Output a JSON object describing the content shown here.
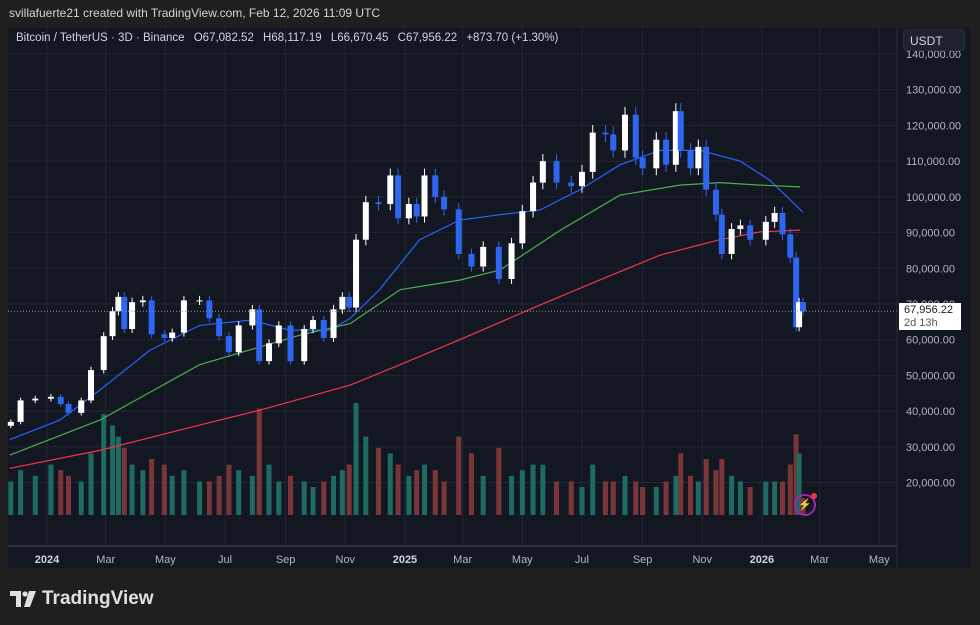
{
  "credit": "svillafuerte21 created with TradingView.com, Feb 12, 2026 11:09 UTC",
  "legend": {
    "symbol": "Bitcoin / TetherUS · 3D · Binance",
    "open": "O67,082.52",
    "high": "H68,117.19",
    "low": "L66,670.45",
    "close": "C67,956.22",
    "change": "+873.70 (+1.30%)"
  },
  "currency_button": "USDT",
  "last_price": {
    "value": "67,956.22",
    "countdown": "2d 13h"
  },
  "logo_text": "TradingView",
  "colors": {
    "up_candle": "#ffffff",
    "down_candle": "#2f66f0",
    "ma_fast": "#2962ff",
    "ma_mid": "#4caf50",
    "ma_slow": "#f23645",
    "vol_up": "#1d6b61",
    "vol_down": "#7a3538",
    "background": "#131722"
  },
  "chart_data": {
    "type": "candlestick",
    "title": "Bitcoin / TetherUS · 3D · Binance",
    "ylim": [
      15000,
      142000
    ],
    "xlim": [
      "2023-11-20",
      "2026-05-20"
    ],
    "grid": true,
    "price_ticks": [
      "140,000.00",
      "130,000.00",
      "120,000.00",
      "110,000.00",
      "100,000.00",
      "90,000.00",
      "80,000.00",
      "70,000.00",
      "60,000.00",
      "50,000.00",
      "40,000.00",
      "30,000.00",
      "20,000.00"
    ],
    "price_tick_values": [
      140000,
      130000,
      120000,
      110000,
      100000,
      90000,
      80000,
      70000,
      60000,
      50000,
      40000,
      30000,
      20000
    ],
    "time_ticks": [
      {
        "label": "2024",
        "date": "2024-01-01",
        "year": true
      },
      {
        "label": "Mar",
        "date": "2024-03-01"
      },
      {
        "label": "May",
        "date": "2024-05-01"
      },
      {
        "label": "Jul",
        "date": "2024-07-01"
      },
      {
        "label": "Sep",
        "date": "2024-09-01"
      },
      {
        "label": "Nov",
        "date": "2024-11-01"
      },
      {
        "label": "2025",
        "date": "2025-01-01",
        "year": true
      },
      {
        "label": "Mar",
        "date": "2025-03-01"
      },
      {
        "label": "May",
        "date": "2025-05-01"
      },
      {
        "label": "Jul",
        "date": "2025-07-01"
      },
      {
        "label": "Sep",
        "date": "2025-09-01"
      },
      {
        "label": "Nov",
        "date": "2025-11-01"
      },
      {
        "label": "2026",
        "date": "2026-01-01",
        "year": true
      },
      {
        "label": "Mar",
        "date": "2026-03-01"
      },
      {
        "label": "May",
        "date": "2026-05-01"
      }
    ],
    "candles_close_volume": [
      [
        "2023-11-25",
        37000,
        0.3
      ],
      [
        "2023-12-05",
        43000,
        0.4
      ],
      [
        "2023-12-20",
        43500,
        0.35
      ],
      [
        "2024-01-05",
        44000,
        0.45
      ],
      [
        "2024-01-15",
        42000,
        0.4
      ],
      [
        "2024-01-23",
        39500,
        0.35
      ],
      [
        "2024-02-05",
        43000,
        0.3
      ],
      [
        "2024-02-15",
        51500,
        0.55
      ],
      [
        "2024-02-28",
        61000,
        0.9
      ],
      [
        "2024-03-08",
        68000,
        0.8
      ],
      [
        "2024-03-14",
        72000,
        0.7
      ],
      [
        "2024-03-20",
        63000,
        0.6
      ],
      [
        "2024-03-28",
        70500,
        0.45
      ],
      [
        "2024-04-08",
        71000,
        0.4
      ],
      [
        "2024-04-17",
        61500,
        0.5
      ],
      [
        "2024-04-30",
        60500,
        0.45
      ],
      [
        "2024-05-08",
        62000,
        0.35
      ],
      [
        "2024-05-20",
        71000,
        0.4
      ],
      [
        "2024-06-05",
        71000,
        0.3
      ],
      [
        "2024-06-15",
        66000,
        0.3
      ],
      [
        "2024-06-25",
        61000,
        0.35
      ],
      [
        "2024-07-05",
        56500,
        0.45
      ],
      [
        "2024-07-15",
        64000,
        0.4
      ],
      [
        "2024-07-29",
        68500,
        0.35
      ],
      [
        "2024-08-05",
        54000,
        0.95
      ],
      [
        "2024-08-15",
        59000,
        0.45
      ],
      [
        "2024-08-25",
        64000,
        0.3
      ],
      [
        "2024-09-06",
        54000,
        0.35
      ],
      [
        "2024-09-20",
        63000,
        0.3
      ],
      [
        "2024-09-29",
        65500,
        0.25
      ],
      [
        "2024-10-10",
        60500,
        0.3
      ],
      [
        "2024-10-20",
        68500,
        0.35
      ],
      [
        "2024-10-29",
        72000,
        0.4
      ],
      [
        "2024-11-05",
        69000,
        0.45
      ],
      [
        "2024-11-12",
        88000,
        1.0
      ],
      [
        "2024-11-22",
        98500,
        0.7
      ],
      [
        "2024-12-05",
        98000,
        0.6
      ],
      [
        "2024-12-17",
        106000,
        0.55
      ],
      [
        "2024-12-25",
        94000,
        0.45
      ],
      [
        "2025-01-05",
        98000,
        0.35
      ],
      [
        "2025-01-13",
        94500,
        0.4
      ],
      [
        "2025-01-21",
        106000,
        0.45
      ],
      [
        "2025-02-01",
        100000,
        0.4
      ],
      [
        "2025-02-10",
        96500,
        0.3
      ],
      [
        "2025-02-25",
        84000,
        0.7
      ],
      [
        "2025-03-10",
        80500,
        0.55
      ],
      [
        "2025-03-22",
        86000,
        0.35
      ],
      [
        "2025-04-07",
        77000,
        0.6
      ],
      [
        "2025-04-20",
        87000,
        0.35
      ],
      [
        "2025-05-01",
        96000,
        0.4
      ],
      [
        "2025-05-12",
        104000,
        0.45
      ],
      [
        "2025-05-22",
        110000,
        0.45
      ],
      [
        "2025-06-05",
        104000,
        0.3
      ],
      [
        "2025-06-20",
        103000,
        0.3
      ],
      [
        "2025-07-01",
        107000,
        0.25
      ],
      [
        "2025-07-12",
        118000,
        0.45
      ],
      [
        "2025-07-25",
        117500,
        0.3
      ],
      [
        "2025-08-02",
        113000,
        0.3
      ],
      [
        "2025-08-14",
        123000,
        0.35
      ],
      [
        "2025-08-25",
        111000,
        0.3
      ],
      [
        "2025-09-01",
        108000,
        0.25
      ],
      [
        "2025-09-15",
        116000,
        0.25
      ],
      [
        "2025-09-25",
        109000,
        0.3
      ],
      [
        "2025-10-05",
        124000,
        0.35
      ],
      [
        "2025-10-10",
        113000,
        0.55
      ],
      [
        "2025-10-20",
        108000,
        0.35
      ],
      [
        "2025-10-28",
        114000,
        0.3
      ],
      [
        "2025-11-05",
        102000,
        0.5
      ],
      [
        "2025-11-15",
        95000,
        0.4
      ],
      [
        "2025-11-21",
        84000,
        0.5
      ],
      [
        "2025-12-01",
        91000,
        0.35
      ],
      [
        "2025-12-10",
        92000,
        0.3
      ],
      [
        "2025-12-20",
        88000,
        0.25
      ],
      [
        "2026-01-05",
        93000,
        0.3
      ],
      [
        "2026-01-14",
        95500,
        0.3
      ],
      [
        "2026-01-22",
        89500,
        0.3
      ],
      [
        "2026-01-30",
        83000,
        0.45
      ],
      [
        "2026-02-05",
        63500,
        0.72
      ],
      [
        "2026-02-08",
        70500,
        0.55
      ],
      [
        "2026-02-12",
        67956.22,
        0.15
      ]
    ],
    "moving_averages": [
      {
        "color_key": "ma_fast",
        "points": [
          [
            "2023-11-24",
            32000
          ],
          [
            "2024-01-14",
            37500
          ],
          [
            "2024-02-24",
            45900
          ],
          [
            "2024-04-15",
            57000
          ],
          [
            "2024-06-05",
            64000
          ],
          [
            "2024-07-27",
            65500
          ],
          [
            "2024-09-05",
            62700
          ],
          [
            "2024-10-16",
            62700
          ],
          [
            "2024-11-06",
            66000
          ],
          [
            "2024-12-06",
            74000
          ],
          [
            "2025-01-16",
            88000
          ],
          [
            "2025-02-26",
            93500
          ],
          [
            "2025-04-08",
            95000
          ],
          [
            "2025-05-19",
            96300
          ],
          [
            "2025-06-29",
            102000
          ],
          [
            "2025-08-09",
            109000
          ],
          [
            "2025-09-19",
            113000
          ],
          [
            "2025-10-30",
            113000
          ],
          [
            "2025-12-10",
            110000
          ],
          [
            "2026-01-09",
            104700
          ],
          [
            "2026-02-12",
            95700
          ]
        ]
      },
      {
        "color_key": "ma_mid",
        "points": [
          [
            "2023-11-24",
            27700
          ],
          [
            "2024-02-24",
            37500
          ],
          [
            "2024-06-05",
            53000
          ],
          [
            "2024-09-16",
            61300
          ],
          [
            "2024-11-06",
            64500
          ],
          [
            "2024-12-27",
            74000
          ],
          [
            "2025-02-26",
            76700
          ],
          [
            "2025-04-08",
            79500
          ],
          [
            "2025-06-09",
            90700
          ],
          [
            "2025-08-09",
            100500
          ],
          [
            "2025-10-09",
            103300
          ],
          [
            "2025-11-19",
            104000
          ],
          [
            "2025-12-30",
            103300
          ],
          [
            "2026-02-09",
            102800
          ]
        ]
      },
      {
        "color_key": "ma_slow",
        "points": [
          [
            "2023-11-24",
            24000
          ],
          [
            "2024-02-24",
            29000
          ],
          [
            "2024-06-05",
            36100
          ],
          [
            "2024-08-06",
            40300
          ],
          [
            "2024-11-06",
            47300
          ],
          [
            "2024-12-27",
            53000
          ],
          [
            "2025-02-26",
            60000
          ],
          [
            "2025-05-19",
            69700
          ],
          [
            "2025-07-19",
            76700
          ],
          [
            "2025-09-19",
            83700
          ],
          [
            "2025-11-19",
            88000
          ],
          [
            "2025-12-30",
            90200
          ],
          [
            "2026-02-09",
            90700
          ]
        ]
      }
    ]
  }
}
